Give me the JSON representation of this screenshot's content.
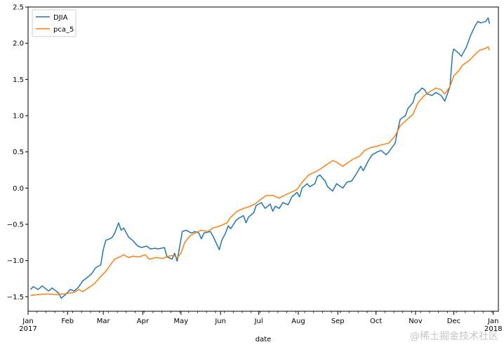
{
  "chart_data": {
    "type": "line",
    "xlabel": "date",
    "ylim": [
      -1.7,
      2.5
    ],
    "y_ticks": [
      -1.5,
      -1.0,
      -0.5,
      0.0,
      0.5,
      1.0,
      1.5,
      2.0,
      2.5
    ],
    "y_tick_labels": [
      "−1.5",
      "−1.0",
      "−0.5",
      "0.0",
      "0.5",
      "1.0",
      "1.5",
      "2.0",
      "2.5"
    ],
    "x_range": [
      "2017-01-01",
      "2018-01-05"
    ],
    "x_ticks": [
      {
        "date": "2017-01-01",
        "label": "Jan",
        "sublabel": "2017"
      },
      {
        "date": "2017-02-01",
        "label": "Feb"
      },
      {
        "date": "2017-03-01",
        "label": "Mar"
      },
      {
        "date": "2017-04-01",
        "label": "Apr"
      },
      {
        "date": "2017-05-01",
        "label": "May"
      },
      {
        "date": "2017-06-01",
        "label": "Jun"
      },
      {
        "date": "2017-07-01",
        "label": "Jul"
      },
      {
        "date": "2017-08-01",
        "label": "Aug"
      },
      {
        "date": "2017-09-01",
        "label": "Sep"
      },
      {
        "date": "2017-10-01",
        "label": "Oct"
      },
      {
        "date": "2017-11-01",
        "label": "Nov"
      },
      {
        "date": "2017-12-01",
        "label": "Dec"
      },
      {
        "date": "2018-01-01",
        "label": "Jan",
        "sublabel": "2018"
      }
    ],
    "grid": false,
    "legend": "top-left",
    "series": [
      {
        "name": "DJIA",
        "color": "#1f77b4",
        "points": [
          [
            "2017-01-03",
            -1.4
          ],
          [
            "2017-01-05",
            -1.36
          ],
          [
            "2017-01-09",
            -1.4
          ],
          [
            "2017-01-12",
            -1.35
          ],
          [
            "2017-01-17",
            -1.42
          ],
          [
            "2017-01-20",
            -1.38
          ],
          [
            "2017-01-25",
            -1.45
          ],
          [
            "2017-01-27",
            -1.52
          ],
          [
            "2017-01-31",
            -1.46
          ],
          [
            "2017-02-03",
            -1.4
          ],
          [
            "2017-02-06",
            -1.42
          ],
          [
            "2017-02-09",
            -1.38
          ],
          [
            "2017-02-13",
            -1.28
          ],
          [
            "2017-02-16",
            -1.24
          ],
          [
            "2017-02-20",
            -1.18
          ],
          [
            "2017-02-23",
            -1.1
          ],
          [
            "2017-02-27",
            -1.06
          ],
          [
            "2017-03-01",
            -0.85
          ],
          [
            "2017-03-03",
            -0.72
          ],
          [
            "2017-03-06",
            -0.7
          ],
          [
            "2017-03-08",
            -0.68
          ],
          [
            "2017-03-10",
            -0.62
          ],
          [
            "2017-03-13",
            -0.48
          ],
          [
            "2017-03-15",
            -0.58
          ],
          [
            "2017-03-17",
            -0.55
          ],
          [
            "2017-03-21",
            -0.68
          ],
          [
            "2017-03-24",
            -0.72
          ],
          [
            "2017-03-28",
            -0.8
          ],
          [
            "2017-03-31",
            -0.82
          ],
          [
            "2017-04-04",
            -0.8
          ],
          [
            "2017-04-07",
            -0.84
          ],
          [
            "2017-04-11",
            -0.83
          ],
          [
            "2017-04-13",
            -0.84
          ],
          [
            "2017-04-18",
            -0.82
          ],
          [
            "2017-04-20",
            -0.95
          ],
          [
            "2017-04-24",
            -0.98
          ],
          [
            "2017-04-26",
            -0.9
          ],
          [
            "2017-04-28",
            -1.01
          ],
          [
            "2017-05-02",
            -0.6
          ],
          [
            "2017-05-05",
            -0.58
          ],
          [
            "2017-05-09",
            -0.62
          ],
          [
            "2017-05-12",
            -0.6
          ],
          [
            "2017-05-15",
            -0.62
          ],
          [
            "2017-05-17",
            -0.7
          ],
          [
            "2017-05-19",
            -0.62
          ],
          [
            "2017-05-24",
            -0.6
          ],
          [
            "2017-05-26",
            -0.66
          ],
          [
            "2017-05-31",
            -0.85
          ],
          [
            "2017-06-02",
            -0.72
          ],
          [
            "2017-06-05",
            -0.62
          ],
          [
            "2017-06-07",
            -0.52
          ],
          [
            "2017-06-09",
            -0.56
          ],
          [
            "2017-06-13",
            -0.45
          ],
          [
            "2017-06-15",
            -0.42
          ],
          [
            "2017-06-19",
            -0.38
          ],
          [
            "2017-06-21",
            -0.48
          ],
          [
            "2017-06-23",
            -0.4
          ],
          [
            "2017-06-27",
            -0.34
          ],
          [
            "2017-06-29",
            -0.24
          ],
          [
            "2017-07-03",
            -0.2
          ],
          [
            "2017-07-06",
            -0.28
          ],
          [
            "2017-07-10",
            -0.22
          ],
          [
            "2017-07-12",
            -0.32
          ],
          [
            "2017-07-14",
            -0.25
          ],
          [
            "2017-07-17",
            -0.28
          ],
          [
            "2017-07-20",
            -0.2
          ],
          [
            "2017-07-24",
            -0.23
          ],
          [
            "2017-07-27",
            -0.12
          ],
          [
            "2017-07-31",
            -0.06
          ],
          [
            "2017-08-02",
            -0.12
          ],
          [
            "2017-08-04",
            0.0
          ],
          [
            "2017-08-08",
            0.06
          ],
          [
            "2017-08-10",
            0.02
          ],
          [
            "2017-08-14",
            0.06
          ],
          [
            "2017-08-16",
            0.16
          ],
          [
            "2017-08-18",
            0.18
          ],
          [
            "2017-08-22",
            0.1
          ],
          [
            "2017-08-24",
            0.02
          ],
          [
            "2017-08-28",
            -0.04
          ],
          [
            "2017-08-31",
            0.06
          ],
          [
            "2017-09-05",
            0.0
          ],
          [
            "2017-09-08",
            0.08
          ],
          [
            "2017-09-12",
            0.1
          ],
          [
            "2017-09-15",
            0.18
          ],
          [
            "2017-09-19",
            0.3
          ],
          [
            "2017-09-21",
            0.24
          ],
          [
            "2017-09-25",
            0.38
          ],
          [
            "2017-09-28",
            0.46
          ],
          [
            "2017-10-02",
            0.5
          ],
          [
            "2017-10-05",
            0.52
          ],
          [
            "2017-10-09",
            0.46
          ],
          [
            "2017-10-11",
            0.5
          ],
          [
            "2017-10-16",
            0.62
          ],
          [
            "2017-10-18",
            0.8
          ],
          [
            "2017-10-20",
            0.95
          ],
          [
            "2017-10-24",
            1.0
          ],
          [
            "2017-10-26",
            1.1
          ],
          [
            "2017-10-30",
            1.18
          ],
          [
            "2017-11-01",
            1.3
          ],
          [
            "2017-11-03",
            1.32
          ],
          [
            "2017-11-06",
            1.38
          ],
          [
            "2017-11-08",
            1.36
          ],
          [
            "2017-11-10",
            1.3
          ],
          [
            "2017-11-14",
            1.28
          ],
          [
            "2017-11-17",
            1.32
          ],
          [
            "2017-11-21",
            1.28
          ],
          [
            "2017-11-24",
            1.2
          ],
          [
            "2017-11-28",
            1.4
          ],
          [
            "2017-11-30",
            1.85
          ],
          [
            "2017-12-01",
            1.92
          ],
          [
            "2017-12-05",
            1.86
          ],
          [
            "2017-12-07",
            1.82
          ],
          [
            "2017-12-11",
            1.95
          ],
          [
            "2017-12-14",
            2.1
          ],
          [
            "2017-12-18",
            2.25
          ],
          [
            "2017-12-20",
            2.3
          ],
          [
            "2017-12-22",
            2.28
          ],
          [
            "2017-12-26",
            2.3
          ],
          [
            "2017-12-28",
            2.35
          ],
          [
            "2017-12-29",
            2.27
          ]
        ]
      },
      {
        "name": "pca_5",
        "color": "#ff7f0e",
        "points": [
          [
            "2017-01-03",
            -1.48
          ],
          [
            "2017-01-09",
            -1.47
          ],
          [
            "2017-01-16",
            -1.46
          ],
          [
            "2017-01-23",
            -1.47
          ],
          [
            "2017-01-30",
            -1.46
          ],
          [
            "2017-02-06",
            -1.44
          ],
          [
            "2017-02-10",
            -1.4
          ],
          [
            "2017-02-13",
            -1.43
          ],
          [
            "2017-02-17",
            -1.38
          ],
          [
            "2017-02-22",
            -1.32
          ],
          [
            "2017-02-27",
            -1.22
          ],
          [
            "2017-03-03",
            -1.15
          ],
          [
            "2017-03-07",
            -1.05
          ],
          [
            "2017-03-10",
            -0.98
          ],
          [
            "2017-03-14",
            -0.95
          ],
          [
            "2017-03-17",
            -0.92
          ],
          [
            "2017-03-21",
            -0.96
          ],
          [
            "2017-03-24",
            -0.94
          ],
          [
            "2017-03-29",
            -0.95
          ],
          [
            "2017-04-03",
            -0.92
          ],
          [
            "2017-04-06",
            -0.98
          ],
          [
            "2017-04-11",
            -0.96
          ],
          [
            "2017-04-17",
            -0.97
          ],
          [
            "2017-04-21",
            -0.94
          ],
          [
            "2017-04-25",
            -0.93
          ],
          [
            "2017-04-28",
            -0.96
          ],
          [
            "2017-05-01",
            -0.9
          ],
          [
            "2017-05-04",
            -0.75
          ],
          [
            "2017-05-08",
            -0.66
          ],
          [
            "2017-05-12",
            -0.62
          ],
          [
            "2017-05-17",
            -0.58
          ],
          [
            "2017-05-22",
            -0.6
          ],
          [
            "2017-05-26",
            -0.55
          ],
          [
            "2017-06-01",
            -0.52
          ],
          [
            "2017-06-06",
            -0.48
          ],
          [
            "2017-06-09",
            -0.4
          ],
          [
            "2017-06-14",
            -0.32
          ],
          [
            "2017-06-19",
            -0.28
          ],
          [
            "2017-06-23",
            -0.26
          ],
          [
            "2017-06-28",
            -0.22
          ],
          [
            "2017-07-03",
            -0.15
          ],
          [
            "2017-07-07",
            -0.1
          ],
          [
            "2017-07-12",
            -0.1
          ],
          [
            "2017-07-17",
            -0.14
          ],
          [
            "2017-07-21",
            -0.1
          ],
          [
            "2017-07-26",
            -0.06
          ],
          [
            "2017-07-31",
            -0.02
          ],
          [
            "2017-08-04",
            0.08
          ],
          [
            "2017-08-09",
            0.18
          ],
          [
            "2017-08-14",
            0.22
          ],
          [
            "2017-08-18",
            0.26
          ],
          [
            "2017-08-23",
            0.32
          ],
          [
            "2017-08-28",
            0.38
          ],
          [
            "2017-08-31",
            0.36
          ],
          [
            "2017-09-05",
            0.3
          ],
          [
            "2017-09-08",
            0.34
          ],
          [
            "2017-09-13",
            0.4
          ],
          [
            "2017-09-18",
            0.44
          ],
          [
            "2017-09-22",
            0.52
          ],
          [
            "2017-09-27",
            0.56
          ],
          [
            "2017-10-02",
            0.58
          ],
          [
            "2017-10-06",
            0.6
          ],
          [
            "2017-10-11",
            0.62
          ],
          [
            "2017-10-16",
            0.72
          ],
          [
            "2017-10-20",
            0.86
          ],
          [
            "2017-10-25",
            0.94
          ],
          [
            "2017-10-30",
            1.02
          ],
          [
            "2017-11-03",
            1.18
          ],
          [
            "2017-11-08",
            1.28
          ],
          [
            "2017-11-13",
            1.34
          ],
          [
            "2017-11-17",
            1.38
          ],
          [
            "2017-11-21",
            1.36
          ],
          [
            "2017-11-24",
            1.3
          ],
          [
            "2017-11-28",
            1.4
          ],
          [
            "2017-12-01",
            1.55
          ],
          [
            "2017-12-05",
            1.62
          ],
          [
            "2017-12-08",
            1.7
          ],
          [
            "2017-12-13",
            1.76
          ],
          [
            "2017-12-18",
            1.85
          ],
          [
            "2017-12-21",
            1.9
          ],
          [
            "2017-12-26",
            1.93
          ],
          [
            "2017-12-28",
            1.95
          ],
          [
            "2017-12-29",
            1.9
          ]
        ]
      }
    ]
  },
  "watermark": "@稀土掘金技术社区"
}
